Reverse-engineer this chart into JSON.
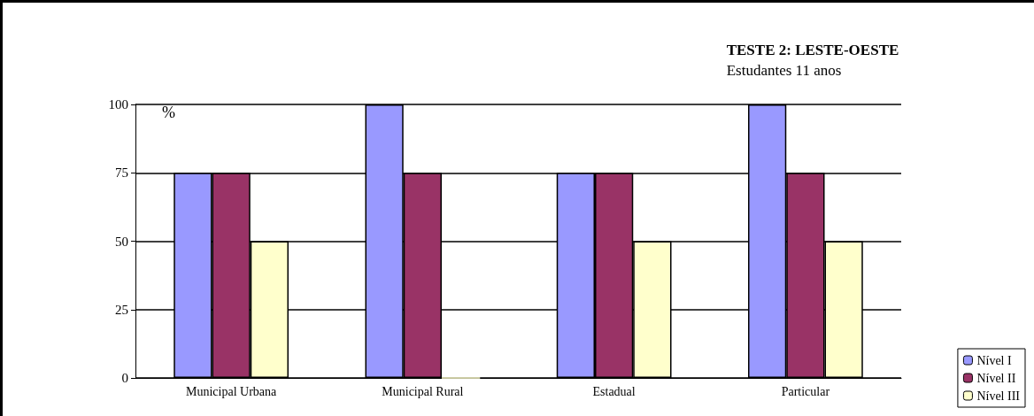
{
  "chart_data": {
    "type": "bar",
    "title": "TESTE 2: LESTE-OESTE",
    "subtitle": "Estudantes 11 anos",
    "ylabel": "%",
    "categories": [
      "Municipal Urbana",
      "Municipal Rural",
      "Estadual",
      "Particular"
    ],
    "series": [
      {
        "name": "Nível I",
        "color": "#9999ff",
        "values": [
          75,
          100,
          75,
          100
        ]
      },
      {
        "name": "Nível II",
        "color": "#993366",
        "values": [
          75,
          75,
          75,
          75
        ]
      },
      {
        "name": "Nível III",
        "color": "#ffffcc",
        "values": [
          50,
          0,
          50,
          50
        ]
      }
    ],
    "ylim": [
      0,
      100
    ],
    "yticks": [
      0,
      25,
      50,
      75,
      100
    ],
    "grid": "y",
    "legend": "bottom right"
  }
}
